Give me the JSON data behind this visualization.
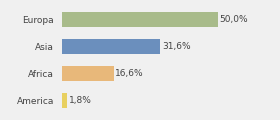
{
  "categories": [
    "Europa",
    "Asia",
    "Africa",
    "America"
  ],
  "values": [
    50.0,
    31.6,
    16.6,
    1.8
  ],
  "labels": [
    "50,0%",
    "31,6%",
    "16,6%",
    "1,8%"
  ],
  "bar_colors": [
    "#a8bb8a",
    "#6b8fbd",
    "#e8b87a",
    "#e8d060"
  ],
  "background_color": "#f0f0f0",
  "xlim": [
    0,
    68
  ],
  "bar_height": 0.55,
  "label_fontsize": 6.5,
  "tick_fontsize": 6.5
}
